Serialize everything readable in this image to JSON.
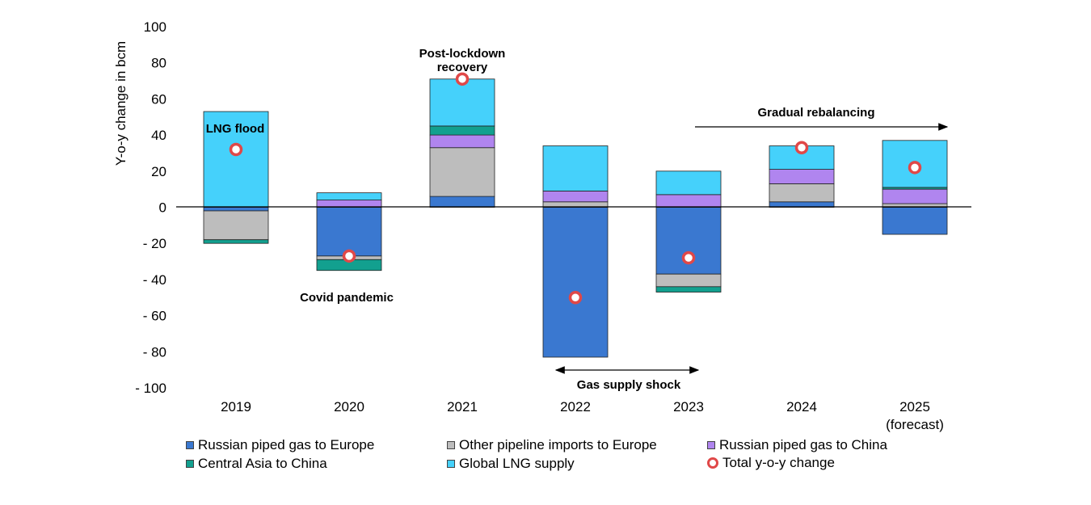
{
  "chart_data": {
    "type": "bar",
    "stacked": true,
    "ylabel": "Y-o-y change in bcm",
    "ylim": [
      -100,
      100
    ],
    "yticks": [
      100,
      80,
      60,
      40,
      20,
      0,
      -20,
      -40,
      -60,
      -80,
      -100
    ],
    "ytick_labels": [
      "100",
      "80",
      "60",
      "40",
      "20",
      "0",
      "- 20",
      "- 40",
      "- 60",
      "- 80",
      "- 100"
    ],
    "categories": [
      "2019",
      "2020",
      "2021",
      "2022",
      "2023",
      "2024",
      "2025"
    ],
    "category_sublabels": [
      "",
      "",
      "",
      "",
      "",
      "",
      "(forecast)"
    ],
    "series": [
      {
        "name": "Russian piped gas to Europe",
        "color": "#3a78d0",
        "values": [
          -2,
          -27,
          6,
          -83,
          -37,
          3,
          -15
        ]
      },
      {
        "name": "Other pipeline imports to Europe",
        "color": "#bdbdbd",
        "values": [
          -16,
          -2,
          27,
          3,
          -7,
          10,
          2
        ]
      },
      {
        "name": "Russian piped gas to China",
        "color": "#b085ef",
        "values": [
          0,
          4,
          7,
          6,
          7,
          8,
          8
        ]
      },
      {
        "name": "Central Asia to China",
        "color": "#12a08f",
        "values": [
          -2,
          -6,
          5,
          0,
          -3,
          0,
          1
        ]
      },
      {
        "name": "Global LNG supply",
        "color": "#45d1fb",
        "values": [
          53,
          4,
          26,
          25,
          13,
          13,
          26
        ]
      }
    ],
    "total": {
      "name": "Total y-o-y change",
      "color": "#e04848",
      "values": [
        32,
        -27,
        71,
        -50,
        -28,
        33,
        22
      ]
    },
    "annotations": [
      {
        "text": "LNG flood",
        "lines": [
          "LNG flood"
        ]
      },
      {
        "text": "Covid pandemic",
        "lines": [
          "Covid pandemic"
        ]
      },
      {
        "text": "Post-lockdown recovery",
        "lines": [
          "Post-lockdown",
          "recovery"
        ]
      },
      {
        "text": "Gas supply shock",
        "lines": [
          "Gas supply shock"
        ]
      },
      {
        "text": "Gradual rebalancing",
        "lines": [
          "Gradual rebalancing"
        ]
      }
    ],
    "legend_placement": "bottom",
    "grid": false
  }
}
